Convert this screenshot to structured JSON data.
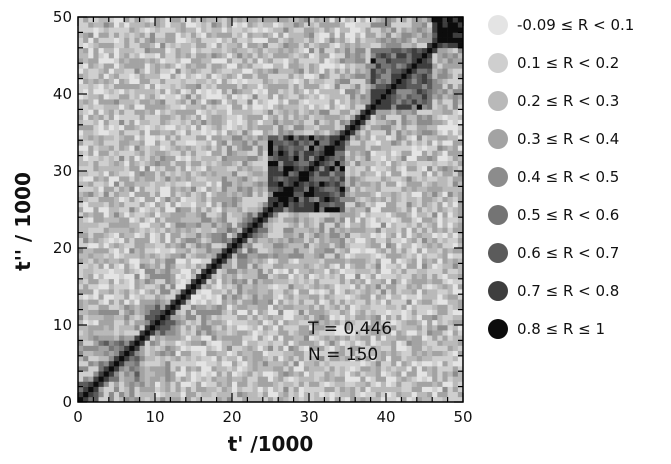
{
  "chart_data": {
    "type": "heatmap",
    "title": "",
    "xlabel": "t' /1000",
    "ylabel": "t'' / 1000",
    "xlim": [
      0,
      50
    ],
    "ylim": [
      0,
      50
    ],
    "x_ticks": [
      "0",
      "10",
      "20",
      "30",
      "40",
      "50"
    ],
    "y_ticks": [
      "0",
      "10",
      "20",
      "30",
      "40",
      "50"
    ],
    "x_tick_values": [
      0,
      10,
      20,
      30,
      40,
      50
    ],
    "y_tick_values": [
      0,
      10,
      20,
      30,
      40,
      50
    ],
    "minor_tick_step": 2,
    "grid": false,
    "grid_cells": 75,
    "symmetric": true,
    "diagonal_value": 1.0,
    "blocks": [
      {
        "from": 0,
        "to": 3,
        "value": 0.7
      },
      {
        "from": 3,
        "to": 9,
        "value": 0.45
      },
      {
        "from": 9,
        "to": 13,
        "value": 0.5
      },
      {
        "from": 13,
        "to": 19,
        "value": 0.15
      },
      {
        "from": 19,
        "to": 25,
        "value": 0.35
      },
      {
        "from": 25,
        "to": 35,
        "value": 0.68
      },
      {
        "from": 35,
        "to": 38,
        "value": 0.3
      },
      {
        "from": 38,
        "to": 46,
        "value": 0.62
      },
      {
        "from": 46,
        "to": 50,
        "value": 0.85
      }
    ],
    "background_value": 0.22,
    "colorbar": {
      "placement": "right",
      "bins": [
        {
          "label": "-0.09 ≤ R < 0.1",
          "min": -0.09,
          "max": 0.1,
          "color": "#e4e4e4"
        },
        {
          "label": "0.1 ≤ R < 0.2",
          "min": 0.1,
          "max": 0.2,
          "color": "#cfcfcf"
        },
        {
          "label": "0.2 ≤ R < 0.3",
          "min": 0.2,
          "max": 0.3,
          "color": "#b9b9b9"
        },
        {
          "label": "0.3 ≤ R < 0.4",
          "min": 0.3,
          "max": 0.4,
          "color": "#a3a3a3"
        },
        {
          "label": "0.4 ≤ R < 0.5",
          "min": 0.4,
          "max": 0.5,
          "color": "#8c8c8c"
        },
        {
          "label": "0.5 ≤ R < 0.6",
          "min": 0.5,
          "max": 0.6,
          "color": "#747474"
        },
        {
          "label": "0.6 ≤ R < 0.7",
          "min": 0.6,
          "max": 0.7,
          "color": "#5b5b5b"
        },
        {
          "label": "0.7 ≤ R < 0.8",
          "min": 0.7,
          "max": 0.8,
          "color": "#3e3e3e"
        },
        {
          "label": "0.8 ≤ R ≤ 1",
          "min": 0.8,
          "max": 1.0,
          "color": "#0c0c0c"
        }
      ]
    },
    "annotations": [
      "T = 0.446",
      "N = 150"
    ]
  }
}
